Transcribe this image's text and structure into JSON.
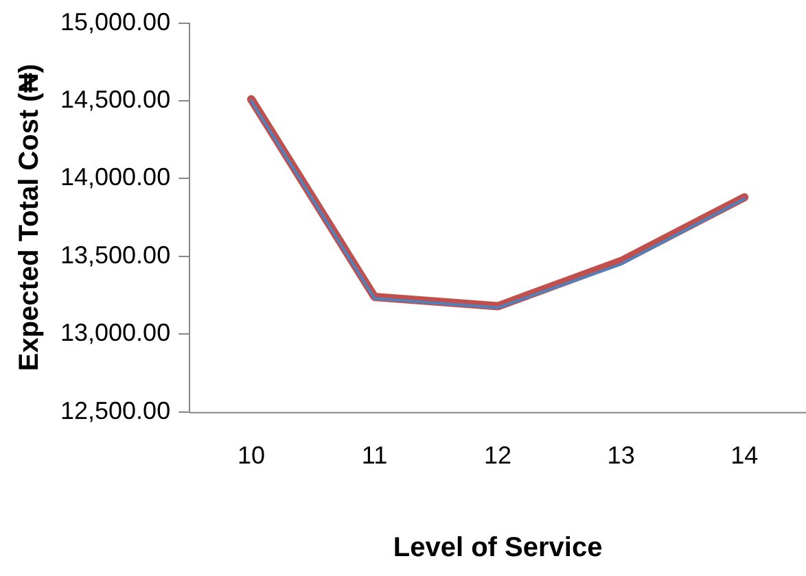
{
  "chart_data": {
    "type": "line",
    "xlabel": "Level of Service",
    "ylabel": "Expected Total Cost (₦)",
    "categories": [
      "10",
      "11",
      "12",
      "13",
      "14"
    ],
    "series": [
      {
        "color": "#4f81bd",
        "values": [
          14500,
          13230,
          13170,
          13450,
          13870
        ]
      },
      {
        "color": "#c0504d",
        "values": [
          14510,
          13240,
          13180,
          13470,
          13880
        ]
      }
    ],
    "ylim": [
      12500,
      15000
    ],
    "yticks": [
      {
        "value": 12500,
        "label": "12,500.00"
      },
      {
        "value": 13000,
        "label": "13,000.00"
      },
      {
        "value": 13500,
        "label": "13,500.00"
      },
      {
        "value": 14000,
        "label": "14,000.00"
      },
      {
        "value": 14500,
        "label": "14,500.00"
      },
      {
        "value": 15000,
        "label": "15,000.00"
      }
    ],
    "grid": false,
    "legend": false,
    "marker": "none",
    "line_style": "solid"
  }
}
